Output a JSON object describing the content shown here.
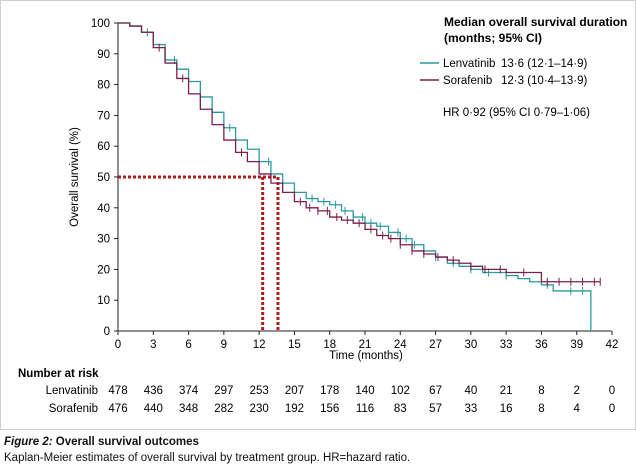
{
  "chart_data": {
    "type": "line",
    "subtype": "kaplan-meier",
    "xlabel": "Time (months)",
    "ylabel": "Overall survival (%)",
    "xlim": [
      0,
      42
    ],
    "ylim": [
      0,
      100
    ],
    "x_ticks": [
      "0",
      "3",
      "6",
      "9",
      "12",
      "15",
      "18",
      "21",
      "24",
      "27",
      "30",
      "33",
      "36",
      "39",
      "42"
    ],
    "y_ticks": [
      "0",
      "10",
      "20",
      "30",
      "40",
      "50",
      "60",
      "70",
      "80",
      "90",
      "100"
    ],
    "grid": false,
    "legend_position": "top-right",
    "legend_title": "Median overall survival duration (months; 95% CI)",
    "legend_title_line1": "Median overall survival duration",
    "legend_title_line2": "(months; 95% CI)",
    "hr_text": "HR 0·92 (95% CI 0·79–1·06)",
    "series": [
      {
        "name": "Lenvatinib",
        "median_text": "13·6 (12·1–14·9)",
        "median": 13.6,
        "color": "#2a9a9c",
        "points": [
          [
            0,
            100
          ],
          [
            1,
            99
          ],
          [
            2,
            97
          ],
          [
            3,
            93
          ],
          [
            4,
            88
          ],
          [
            5,
            85
          ],
          [
            6,
            81
          ],
          [
            7,
            76
          ],
          [
            8,
            71
          ],
          [
            9,
            66
          ],
          [
            10,
            62
          ],
          [
            11,
            59
          ],
          [
            12,
            55
          ],
          [
            13,
            51
          ],
          [
            14,
            48
          ],
          [
            15,
            45
          ],
          [
            16,
            43
          ],
          [
            17,
            42
          ],
          [
            18,
            41
          ],
          [
            19,
            39
          ],
          [
            20,
            37
          ],
          [
            21,
            35
          ],
          [
            22,
            34
          ],
          [
            23,
            32
          ],
          [
            24,
            30
          ],
          [
            25,
            28
          ],
          [
            26,
            26
          ],
          [
            27,
            24
          ],
          [
            28,
            22
          ],
          [
            29,
            21
          ],
          [
            30,
            20
          ],
          [
            31,
            19
          ],
          [
            32,
            19
          ],
          [
            33,
            18
          ],
          [
            34,
            17
          ],
          [
            35,
            16
          ],
          [
            36,
            15
          ],
          [
            37,
            13
          ],
          [
            38,
            13
          ],
          [
            39,
            13
          ],
          [
            40,
            13
          ],
          [
            40.2,
            0
          ]
        ],
        "censor_x": [
          2.5,
          4.8,
          9.5,
          12.8,
          16.5,
          17.5,
          18.5,
          19.3,
          20,
          20.8,
          21.5,
          22.3,
          23,
          23.8,
          24.5,
          25.2,
          26,
          27,
          28.5,
          30,
          31.5,
          33,
          36.5,
          38.5,
          39.5
        ]
      },
      {
        "name": "Sorafenib",
        "median_text": "12·3 (10·4–13·9)",
        "median": 12.3,
        "color": "#7a1f4e",
        "points": [
          [
            0,
            100
          ],
          [
            1,
            99
          ],
          [
            2,
            97
          ],
          [
            3,
            92
          ],
          [
            4,
            87
          ],
          [
            5,
            82
          ],
          [
            6,
            77
          ],
          [
            7,
            72
          ],
          [
            8,
            67
          ],
          [
            9,
            62
          ],
          [
            10,
            58
          ],
          [
            11,
            55
          ],
          [
            12,
            51
          ],
          [
            13,
            48
          ],
          [
            14,
            45
          ],
          [
            15,
            42
          ],
          [
            16,
            40
          ],
          [
            17,
            39
          ],
          [
            18,
            37
          ],
          [
            19,
            36
          ],
          [
            20,
            35
          ],
          [
            21,
            33
          ],
          [
            22,
            31
          ],
          [
            23,
            30
          ],
          [
            24,
            28
          ],
          [
            25,
            26
          ],
          [
            26,
            25
          ],
          [
            27,
            24
          ],
          [
            28,
            23
          ],
          [
            29,
            22
          ],
          [
            30,
            21
          ],
          [
            31,
            20
          ],
          [
            32,
            20
          ],
          [
            33,
            19
          ],
          [
            34,
            19
          ],
          [
            35,
            19
          ],
          [
            36,
            16
          ],
          [
            37,
            16
          ],
          [
            38,
            16
          ],
          [
            39,
            16
          ],
          [
            40,
            16
          ],
          [
            41,
            16
          ]
        ],
        "censor_x": [
          3.5,
          5.5,
          10.5,
          15.5,
          16.3,
          17,
          17.8,
          18.6,
          19.5,
          20.5,
          21.5,
          22.5,
          23.2,
          24,
          25,
          26,
          27.2,
          28.5,
          30,
          31.2,
          32.5,
          34.5,
          36.5,
          37.5,
          38.5,
          39.5,
          40.5,
          41
        ]
      }
    ],
    "number_at_risk": {
      "heading": "Number at risk",
      "rows": [
        {
          "label": "Lenvatinib",
          "values": [
            "478",
            "436",
            "374",
            "297",
            "253",
            "207",
            "178",
            "140",
            "102",
            "67",
            "40",
            "21",
            "8",
            "2",
            "0"
          ]
        },
        {
          "label": "Sorafenib",
          "values": [
            "476",
            "440",
            "348",
            "282",
            "230",
            "192",
            "156",
            "116",
            "83",
            "57",
            "33",
            "16",
            "8",
            "4",
            "0"
          ]
        }
      ]
    }
  },
  "caption": {
    "label": "Figure 2:",
    "title": " Overall survival outcomes",
    "description": "Kaplan-Meier estimates of overall survival by treatment group. HR=hazard ratio."
  },
  "colors": {
    "axis": "#222222",
    "median_guide": "#b01c1c",
    "frame": "#cfcfcf"
  }
}
